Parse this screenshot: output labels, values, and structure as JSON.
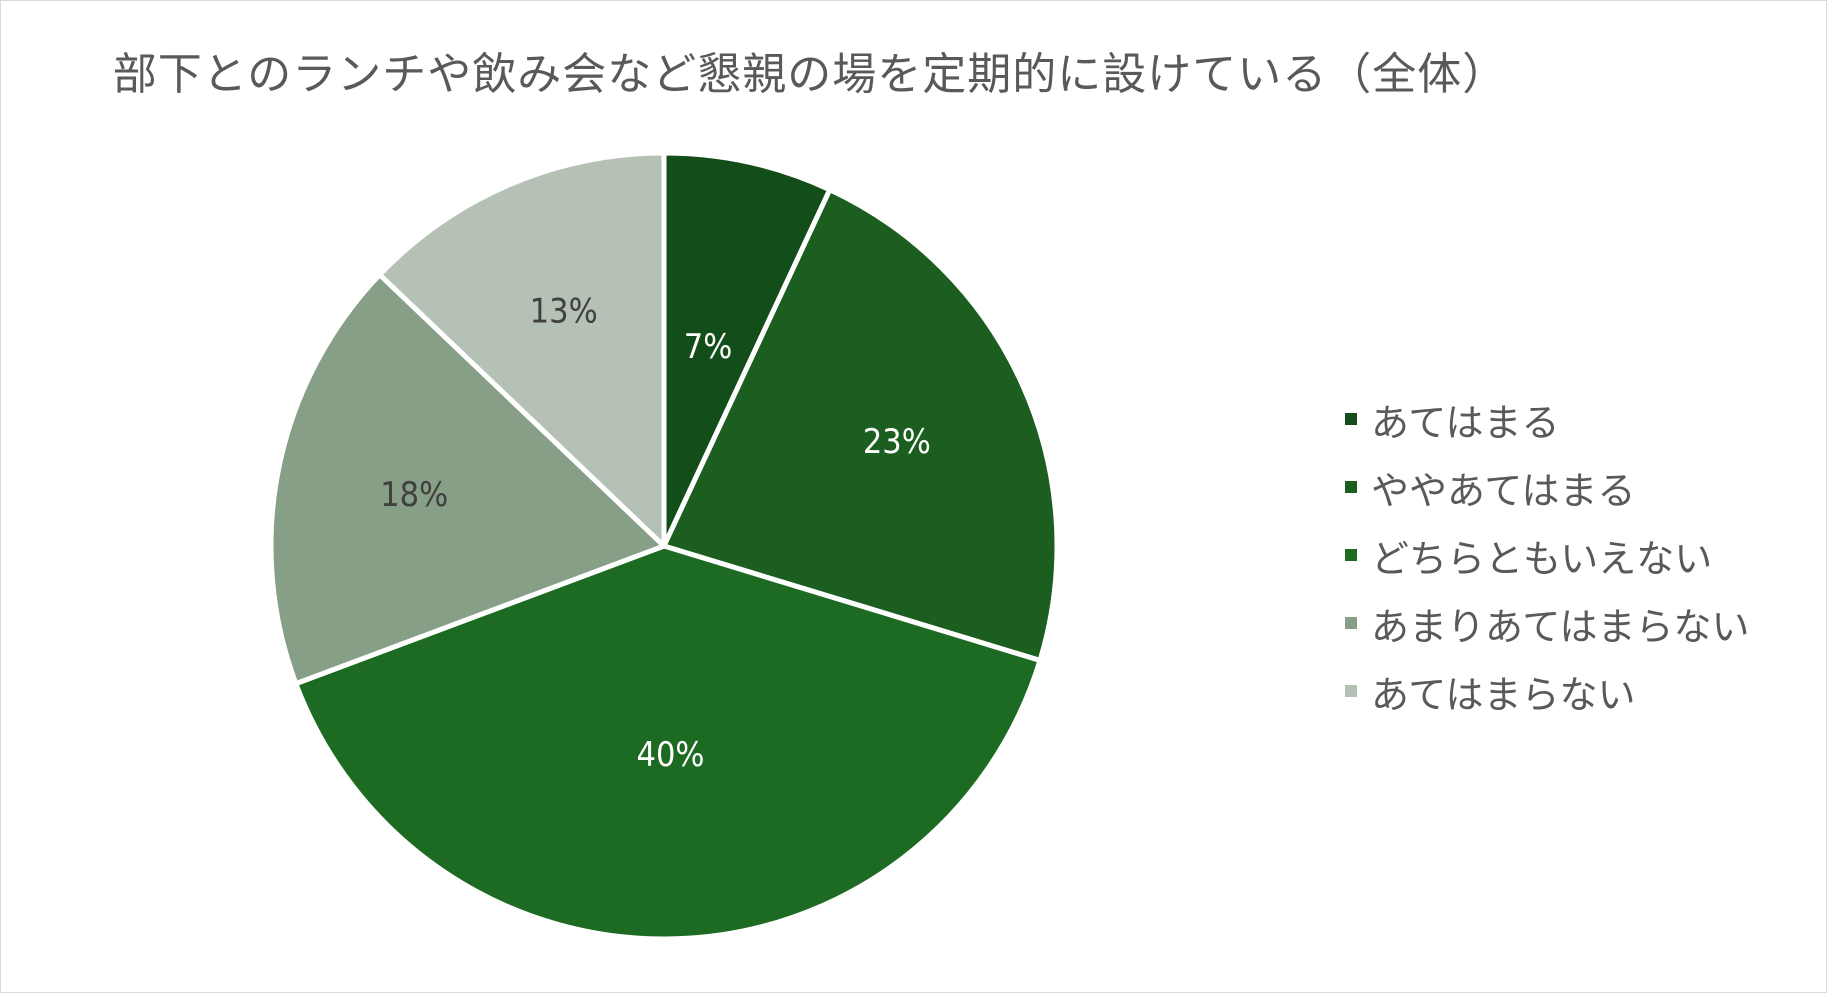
{
  "chart_data": {
    "type": "pie",
    "title": "部下とのランチや飲み会など懇親の場を定期的に設けている（全体）",
    "legend_position": "right",
    "categories": [
      "あてはまる",
      "ややあてはまる",
      "どちらともいえない",
      "あまりあてはまらない",
      "あてはまらない"
    ],
    "values": [
      7,
      23,
      40,
      18,
      13
    ],
    "labels": [
      "7%",
      "23%",
      "40%",
      "18%",
      "13%"
    ],
    "colors": [
      "#134d1a",
      "#1b5e20",
      "#1d6a23",
      "#879e87",
      "#b6c1b6"
    ],
    "label_colors": [
      "#ffffff",
      "#ffffff",
      "#ffffff",
      "#404040",
      "#404040"
    ],
    "start_angle_deg": 0,
    "direction": "clockwise"
  }
}
